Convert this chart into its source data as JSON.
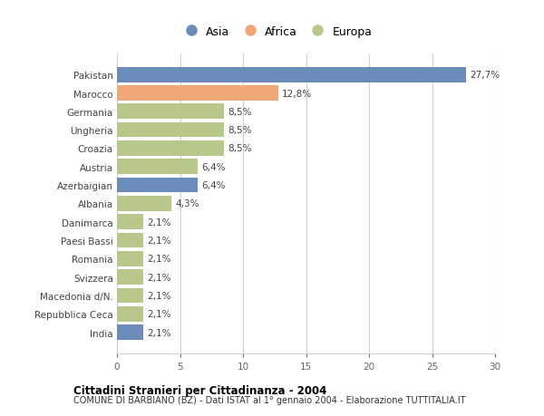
{
  "categories": [
    "Pakistan",
    "Marocco",
    "Germania",
    "Ungheria",
    "Croazia",
    "Austria",
    "Azerbaigian",
    "Albania",
    "Danimarca",
    "Paesi Bassi",
    "Romania",
    "Svizzera",
    "Macedonia d/N.",
    "Repubblica Ceca",
    "India"
  ],
  "values": [
    27.7,
    12.8,
    8.5,
    8.5,
    8.5,
    6.4,
    6.4,
    4.3,
    2.1,
    2.1,
    2.1,
    2.1,
    2.1,
    2.1,
    2.1
  ],
  "labels": [
    "27,7%",
    "12,8%",
    "8,5%",
    "8,5%",
    "8,5%",
    "6,4%",
    "6,4%",
    "4,3%",
    "2,1%",
    "2,1%",
    "2,1%",
    "2,1%",
    "2,1%",
    "2,1%",
    "2,1%"
  ],
  "continents": [
    "Asia",
    "Africa",
    "Europa",
    "Europa",
    "Europa",
    "Europa",
    "Asia",
    "Europa",
    "Europa",
    "Europa",
    "Europa",
    "Europa",
    "Europa",
    "Europa",
    "Asia"
  ],
  "colors": {
    "Asia": "#6b8cba",
    "Africa": "#f0a878",
    "Europa": "#b8c88a"
  },
  "title": "Cittadini Stranieri per Cittadinanza - 2004",
  "subtitle": "COMUNE DI BARBIANO (BZ) - Dati ISTAT al 1° gennaio 2004 - Elaborazione TUTTITALIA.IT",
  "legend_labels": [
    "Asia",
    "Africa",
    "Europa"
  ],
  "xlim": [
    0,
    30
  ],
  "xticks": [
    0,
    5,
    10,
    15,
    20,
    25,
    30
  ],
  "background_color": "#ffffff",
  "grid_color": "#d0d0d0"
}
